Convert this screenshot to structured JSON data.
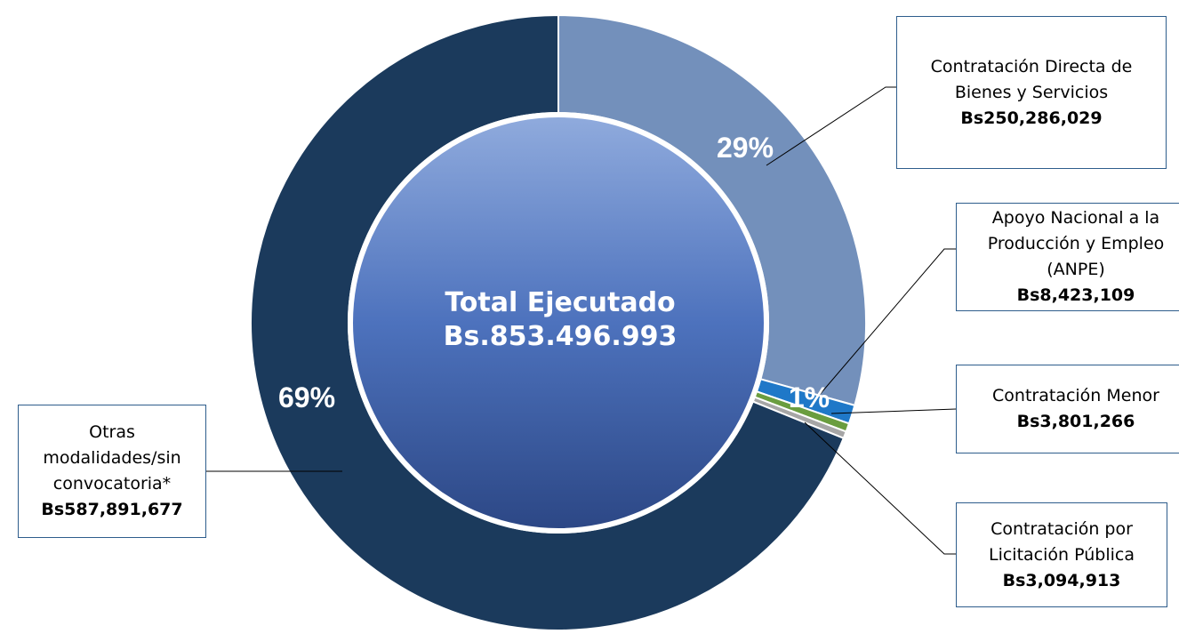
{
  "chart_data": {
    "type": "donut",
    "center_title": "Total Ejecutado",
    "center_value": "Bs.853.496.993",
    "categories": [
      "Contratación Directa de Bienes y Servicios",
      "Apoyo Nacional a la Producción y Empleo (ANPE)",
      "Contratación Menor",
      "Contratación por Licitación Pública",
      "Otras modalidades/sin convocatoria*"
    ],
    "values": [
      250286029,
      8423109,
      3801266,
      3094913,
      587891677
    ],
    "value_labels": [
      "Bs250,286,029",
      "Bs8,423,109",
      "Bs3,801,266",
      "Bs3,094,913",
      "Bs587,891,677"
    ],
    "percent_labels": [
      "29%",
      "1%",
      null,
      null,
      "69%"
    ],
    "colors": [
      "#7390bb",
      "#1f78c8",
      "#6a9d3f",
      "#a6a6a6",
      "#1b3a5c"
    ]
  }
}
